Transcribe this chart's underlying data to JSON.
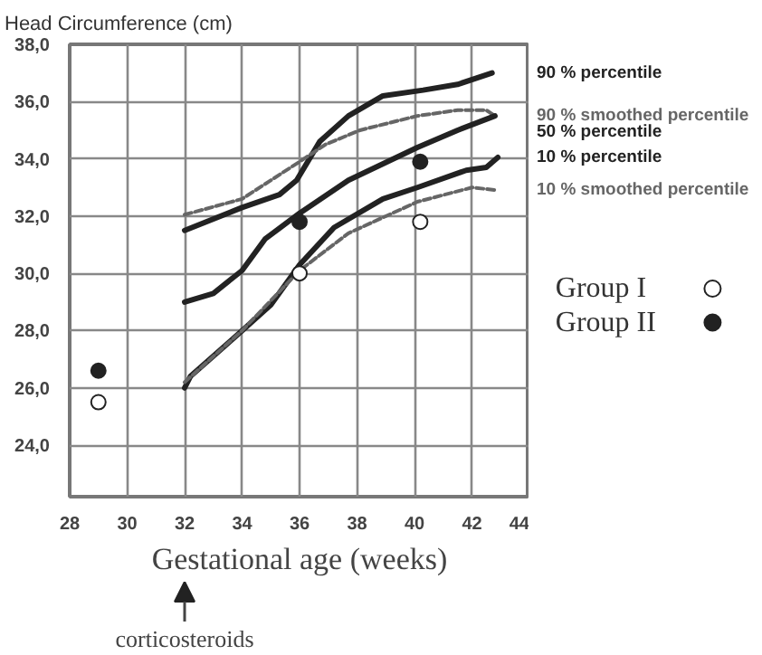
{
  "chart_data": {
    "type": "line",
    "ylabel": "Head Circumference (cm)",
    "xlabel": "Gestational age (weeks)",
    "xlim": [
      28,
      44
    ],
    "xticks": [
      28,
      30,
      32,
      34,
      36,
      38,
      40,
      42,
      44
    ],
    "ylim": [
      22.2,
      38
    ],
    "yticks": [
      {
        "value": 24,
        "label": "24,0"
      },
      {
        "value": 26,
        "label": "26,0"
      },
      {
        "value": 28,
        "label": "28,0"
      },
      {
        "value": 30,
        "label": "30,0"
      },
      {
        "value": 32,
        "label": "32,0"
      },
      {
        "value": 34,
        "label": "34,0"
      },
      {
        "value": 36,
        "label": "36,0"
      },
      {
        "value": 38,
        "label": "38,0"
      }
    ],
    "grid": true,
    "legend": "right",
    "series": [
      {
        "name": "90 % percentile",
        "line_style": "solid",
        "color": "#222222",
        "x": [
          32,
          34,
          35.3,
          35.9,
          36.7,
          37.7,
          38.9,
          40.3,
          41.5,
          42.7
        ],
        "values": [
          31.5,
          32.3,
          32.75,
          33.25,
          34.6,
          35.5,
          36.2,
          36.4,
          36.6,
          37.0
        ]
      },
      {
        "name": "90 % smoothed percentile",
        "line_style": "dashed",
        "color": "#666666",
        "x": [
          32,
          34,
          36,
          36.9,
          38.1,
          40.1,
          41.5,
          42.5,
          42.8
        ],
        "values": [
          32.05,
          32.6,
          33.9,
          34.5,
          35.0,
          35.5,
          35.7,
          35.7,
          35.5
        ]
      },
      {
        "name": "50 % percentile",
        "line_style": "solid",
        "color": "#222222",
        "x": [
          32,
          33,
          34,
          34.8,
          36,
          37.7,
          40.1,
          41.5,
          42.8
        ],
        "values": [
          29.0,
          29.3,
          30.1,
          31.2,
          32.1,
          33.25,
          34.4,
          35.0,
          35.5
        ]
      },
      {
        "name": "10 % percentile",
        "line_style": "solid",
        "color": "#222222",
        "x": [
          32,
          32.2,
          34,
          35,
          36,
          37.2,
          38.9,
          40.1,
          41.8,
          42.5,
          42.9
        ],
        "values": [
          26.0,
          26.4,
          28.0,
          28.9,
          30.3,
          31.6,
          32.6,
          33.0,
          33.6,
          33.7,
          34.05
        ]
      },
      {
        "name": "10 % smoothed percentile",
        "line_style": "dashed",
        "color": "#666666",
        "x": [
          32,
          34,
          36,
          37.7,
          40.1,
          42,
          42.9
        ],
        "values": [
          26.2,
          28.0,
          30.1,
          31.4,
          32.5,
          33.0,
          32.9
        ]
      },
      {
        "name": "Group I",
        "type": "scatter",
        "marker": "circle",
        "color": "#ffffff",
        "x": [
          29,
          36,
          40.2
        ],
        "values": [
          25.5,
          30.0,
          31.8
        ]
      },
      {
        "name": "Group II",
        "type": "scatter",
        "marker": "circle",
        "color": "#222222",
        "x": [
          29,
          36,
          40.2
        ],
        "values": [
          26.6,
          31.8,
          33.9
        ]
      }
    ],
    "annotations": [
      "corticosteroids"
    ]
  }
}
